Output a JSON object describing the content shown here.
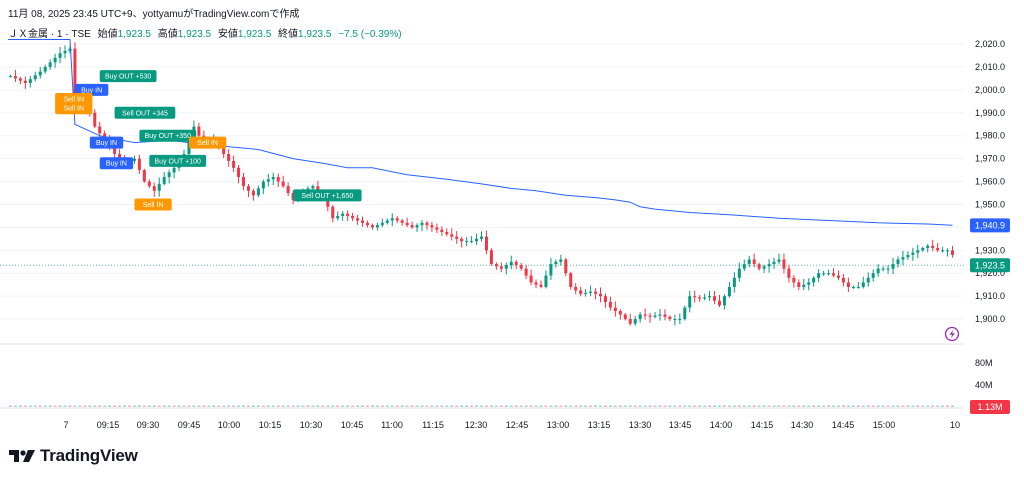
{
  "header": {
    "caption": "11月 08, 2025 23:45 UTC+9、yottyamuがTradingView.comで作成"
  },
  "symbol": {
    "name": "ＪＸ金属 · 1 · TSE",
    "open_label": "始値",
    "open_value": "1,923.5",
    "high_label": "高値",
    "high_value": "1,923.5",
    "low_label": "安値",
    "low_value": "1,923.5",
    "close_label": "終値",
    "close_value": "1,923.5",
    "change": "−7.5 (−0.39%)"
  },
  "brand": {
    "name": "TradingView",
    "icon": "tradingview-logo-icon"
  },
  "colors": {
    "up": "#089981",
    "down": "#f23645",
    "vwap": "#2962ff",
    "buy_marker": "#2962ff",
    "sell_marker": "#ff9800",
    "out_marker": "#089981",
    "volume_badge": "#f23645"
  },
  "chart_data": {
    "type": "candlestick",
    "price_axis": {
      "ticks": [
        "2,020.0",
        "2,010.0",
        "2,000.0",
        "1,990.0",
        "1,980.0",
        "1,970.0",
        "1,960.0",
        "1,950.0",
        "1,940.0",
        "1,930.0",
        "1,920.0",
        "1,910.0",
        "1,900.0"
      ],
      "range": [
        1890,
        2027
      ]
    },
    "volume_axis": {
      "ticks": [
        "80M",
        "40M"
      ],
      "current": "1.13M"
    },
    "time_axis": {
      "ticks": [
        "7",
        "09:15",
        "09:30",
        "09:45",
        "10:00",
        "10:15",
        "10:30",
        "10:45",
        "11:00",
        "11:15",
        "12:30",
        "12:45",
        "13:00",
        "13:15",
        "13:30",
        "13:45",
        "14:00",
        "14:15",
        "14:30",
        "14:45",
        "15:00",
        "10"
      ]
    },
    "last_price_label": "1,923.5",
    "vwap_label": "1,940.9",
    "price_path": [
      [
        0,
        2006
      ],
      [
        3,
        2003
      ],
      [
        6,
        2008
      ],
      [
        10,
        2016
      ],
      [
        12,
        2018
      ],
      [
        13,
        1992
      ],
      [
        15,
        1996
      ],
      [
        17,
        1984
      ],
      [
        19,
        1978
      ],
      [
        21,
        1972
      ],
      [
        23,
        1968
      ],
      [
        25,
        1970
      ],
      [
        27,
        1960
      ],
      [
        29,
        1956
      ],
      [
        31,
        1962
      ],
      [
        33,
        1966
      ],
      [
        35,
        1972
      ],
      [
        37,
        1984
      ],
      [
        39,
        1976
      ],
      [
        41,
        1978
      ],
      [
        43,
        1972
      ],
      [
        45,
        1966
      ],
      [
        47,
        1958
      ],
      [
        49,
        1954
      ],
      [
        51,
        1960
      ],
      [
        53,
        1962
      ],
      [
        55,
        1958
      ],
      [
        57,
        1952
      ],
      [
        59,
        1956
      ],
      [
        61,
        1958
      ],
      [
        63,
        1954
      ],
      [
        65,
        1944
      ],
      [
        67,
        1946
      ],
      [
        69,
        1944
      ],
      [
        71,
        1942
      ],
      [
        73,
        1940
      ],
      [
        75,
        1942
      ],
      [
        77,
        1944
      ],
      [
        79,
        1942
      ],
      [
        81,
        1940
      ],
      [
        83,
        1942
      ],
      [
        85,
        1940
      ],
      [
        87,
        1938
      ],
      [
        89,
        1936
      ],
      [
        91,
        1934
      ],
      [
        93,
        1934
      ],
      [
        95,
        1936
      ],
      [
        97,
        1924
      ],
      [
        99,
        1922
      ],
      [
        101,
        1925
      ],
      [
        103,
        1922
      ],
      [
        105,
        1916
      ],
      [
        107,
        1914
      ],
      [
        109,
        1924
      ],
      [
        111,
        1926
      ],
      [
        113,
        1914
      ],
      [
        115,
        1911
      ],
      [
        117,
        1912
      ],
      [
        119,
        1910
      ],
      [
        121,
        1905
      ],
      [
        123,
        1902
      ],
      [
        125,
        1898
      ],
      [
        127,
        1902
      ],
      [
        129,
        1901
      ],
      [
        131,
        1902
      ],
      [
        133,
        1900
      ],
      [
        135,
        1900
      ],
      [
        137,
        1910
      ],
      [
        139,
        1909
      ],
      [
        141,
        1910
      ],
      [
        143,
        1906
      ],
      [
        145,
        1914
      ],
      [
        147,
        1922
      ],
      [
        149,
        1926
      ],
      [
        151,
        1922
      ],
      [
        153,
        1924
      ],
      [
        155,
        1926
      ],
      [
        157,
        1918
      ],
      [
        159,
        1914
      ],
      [
        161,
        1916
      ],
      [
        163,
        1920
      ],
      [
        165,
        1920
      ],
      [
        167,
        1918
      ],
      [
        169,
        1914
      ],
      [
        171,
        1914
      ],
      [
        173,
        1918
      ],
      [
        175,
        1922
      ],
      [
        177,
        1922
      ],
      [
        179,
        1926
      ],
      [
        181,
        1928
      ],
      [
        183,
        1930
      ],
      [
        185,
        1932
      ],
      [
        187,
        1930
      ],
      [
        189,
        1930
      ],
      [
        190,
        1928
      ]
    ],
    "vwap_path": [
      [
        0,
        2022
      ],
      [
        12,
        2022
      ],
      [
        13,
        1985
      ],
      [
        18,
        1980
      ],
      [
        25,
        1977
      ],
      [
        32,
        1978
      ],
      [
        40,
        1976
      ],
      [
        50,
        1974
      ],
      [
        57,
        1970
      ],
      [
        63,
        1968
      ],
      [
        68,
        1966
      ],
      [
        73,
        1966
      ],
      [
        80,
        1963
      ],
      [
        88,
        1961
      ],
      [
        95,
        1959
      ],
      [
        101,
        1957
      ],
      [
        106,
        1956
      ],
      [
        112,
        1954
      ],
      [
        118,
        1953
      ],
      [
        122,
        1952
      ],
      [
        125,
        1951
      ],
      [
        127,
        1949
      ],
      [
        130,
        1948
      ],
      [
        137,
        1946.5
      ],
      [
        145,
        1945.5
      ],
      [
        155,
        1944
      ],
      [
        165,
        1943
      ],
      [
        175,
        1942
      ],
      [
        185,
        1941.5
      ],
      [
        190,
        1940.9
      ]
    ],
    "trade_markers": [
      {
        "label": "Buy IN",
        "kind": "buy",
        "bar": 13,
        "price": 2000
      },
      {
        "label": "Buy OUT +530",
        "kind": "out",
        "bar": 18,
        "price": 2006
      },
      {
        "label": "Sell IN",
        "kind": "sell",
        "bar": 9,
        "price": 1996
      },
      {
        "label": "Sell IN",
        "kind": "sell",
        "bar": 9,
        "price": 1992
      },
      {
        "label": "Sell OUT +345",
        "kind": "out",
        "bar": 21,
        "price": 1990
      },
      {
        "label": "Buy OUT +350",
        "kind": "out",
        "bar": 26,
        "price": 1980
      },
      {
        "label": "Buy IN",
        "kind": "buy",
        "bar": 16,
        "price": 1977
      },
      {
        "label": "Sell IN",
        "kind": "sell",
        "bar": 36,
        "price": 1977
      },
      {
        "label": "Buy IN",
        "kind": "buy",
        "bar": 18,
        "price": 1968
      },
      {
        "label": "Buy OUT +100",
        "kind": "out",
        "bar": 28,
        "price": 1969
      },
      {
        "label": "Sell OUT +1,650",
        "kind": "out",
        "bar": 57,
        "price": 1954
      },
      {
        "label": "Sell IN",
        "kind": "sell",
        "bar": 25,
        "price": 1950
      }
    ]
  }
}
